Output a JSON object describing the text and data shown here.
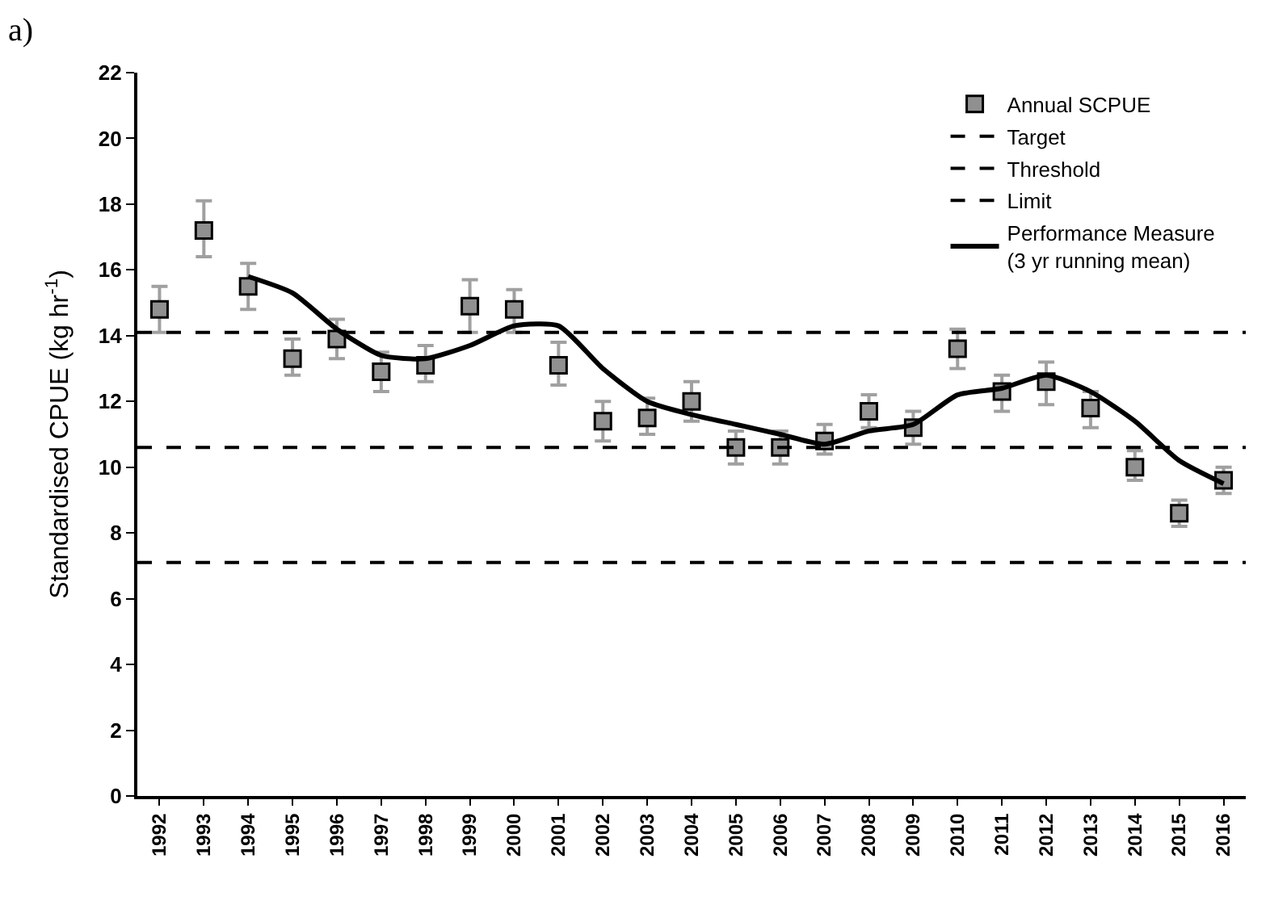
{
  "chart_data": {
    "type": "scatter",
    "annotations": [
      "a)"
    ],
    "ylabel": "Standardised CPUE (kg hr$^{-1}$)",
    "x": [
      1992,
      1993,
      1994,
      1995,
      1996,
      1997,
      1998,
      1999,
      2000,
      2001,
      2002,
      2003,
      2004,
      2005,
      2006,
      2007,
      2008,
      2009,
      2010,
      2011,
      2012,
      2013,
      2014,
      2015,
      2016
    ],
    "xlim": [
      1991.5,
      2016.5
    ],
    "xticks": [
      1992,
      1993,
      1994,
      1995,
      1996,
      1997,
      1998,
      1999,
      2000,
      2001,
      2002,
      2003,
      2004,
      2005,
      2006,
      2007,
      2008,
      2009,
      2010,
      2011,
      2012,
      2013,
      2014,
      2015,
      2016
    ],
    "ylim": [
      0,
      22
    ],
    "yticks": [
      0,
      2,
      4,
      6,
      8,
      10,
      12,
      14,
      16,
      18,
      20,
      22
    ],
    "series": [
      {
        "name": "Annual SCPUE",
        "color": "#909090",
        "marker": "square",
        "values": [
          14.8,
          17.2,
          15.5,
          13.3,
          13.9,
          12.9,
          13.1,
          14.9,
          14.8,
          13.1,
          11.4,
          11.5,
          12.0,
          10.6,
          10.6,
          10.8,
          11.7,
          11.2,
          13.6,
          12.3,
          12.6,
          11.8,
          10.0,
          8.6,
          9.6
        ],
        "errors": [
          [
            14.1,
            15.5
          ],
          [
            16.4,
            18.1
          ],
          [
            14.8,
            16.2
          ],
          [
            12.8,
            13.9
          ],
          [
            13.3,
            14.5
          ],
          [
            12.3,
            13.5
          ],
          [
            12.6,
            13.7
          ],
          [
            14.1,
            15.7
          ],
          [
            14.1,
            15.4
          ],
          [
            12.5,
            13.8
          ],
          [
            10.8,
            12.0
          ],
          [
            11.0,
            12.1
          ],
          [
            11.4,
            12.6
          ],
          [
            10.1,
            11.1
          ],
          [
            10.1,
            11.1
          ],
          [
            10.4,
            11.3
          ],
          [
            11.2,
            12.2
          ],
          [
            10.7,
            11.7
          ],
          [
            13.0,
            14.2
          ],
          [
            11.7,
            12.8
          ],
          [
            11.9,
            13.2
          ],
          [
            11.2,
            12.3
          ],
          [
            9.6,
            10.5
          ],
          [
            8.2,
            9.0
          ],
          [
            9.2,
            10.0
          ]
        ]
      },
      {
        "name": "Performance Measure\n(3 yr running mean)",
        "type": "line",
        "color": "#000000",
        "marker": "none",
        "line_style": "solid",
        "x": [
          1994,
          1995,
          1996,
          1997,
          1998,
          1999,
          2000,
          2001,
          2002,
          2003,
          2004,
          2005,
          2006,
          2007,
          2008,
          2009,
          2010,
          2011,
          2012,
          2013,
          2014,
          2015,
          2016
        ],
        "values": [
          15.8,
          15.3,
          14.2,
          13.4,
          13.3,
          13.7,
          14.3,
          14.3,
          13.0,
          12.0,
          11.6,
          11.3,
          11.0,
          10.7,
          11.1,
          11.3,
          12.2,
          12.4,
          12.8,
          12.3,
          11.4,
          10.2,
          9.5
        ]
      }
    ],
    "ref_lines": [
      {
        "axis": "y",
        "value": 14.1,
        "label": "Target",
        "color": "#000000",
        "line_style": "dashed"
      },
      {
        "axis": "y",
        "value": 10.6,
        "label": "Threshold",
        "color": "#000000",
        "line_style": "dashed"
      },
      {
        "axis": "y",
        "value": 7.1,
        "label": "Limit",
        "color": "#000000",
        "line_style": "dashed"
      }
    ],
    "grid": false,
    "legend": "top right"
  }
}
